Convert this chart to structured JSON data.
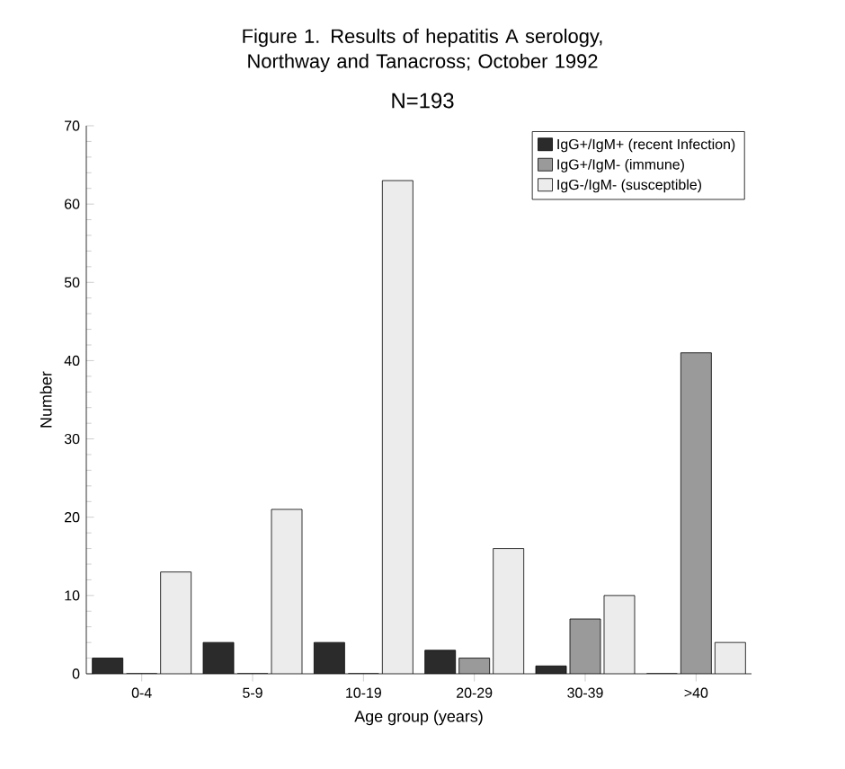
{
  "chart_data": {
    "type": "bar",
    "title": "Figure 1. Results of hepatitis A serology, Northway and Tanacross; October 1992",
    "subtitle": "N=193",
    "xlabel": "Age group (years)",
    "ylabel": "Number",
    "categories": [
      "0-4",
      "5-9",
      "10-19",
      "20-29",
      "30-39",
      ">40"
    ],
    "series": [
      {
        "name": "IgG+/IgM+ (recent Infection)",
        "color": "#2b2b2b",
        "values": [
          2,
          4,
          4,
          3,
          1,
          0
        ]
      },
      {
        "name": "IgG+/IgM- (immune)",
        "color": "#9a9a9a",
        "values": [
          0,
          0,
          0,
          2,
          7,
          41
        ]
      },
      {
        "name": "IgG-/IgM- (susceptible)",
        "color": "#ececec",
        "values": [
          13,
          21,
          63,
          16,
          10,
          4
        ]
      }
    ],
    "ylim": [
      0,
      70
    ],
    "yticks": [
      0,
      10,
      20,
      30,
      40,
      50,
      60,
      70
    ],
    "legend": "top right"
  }
}
